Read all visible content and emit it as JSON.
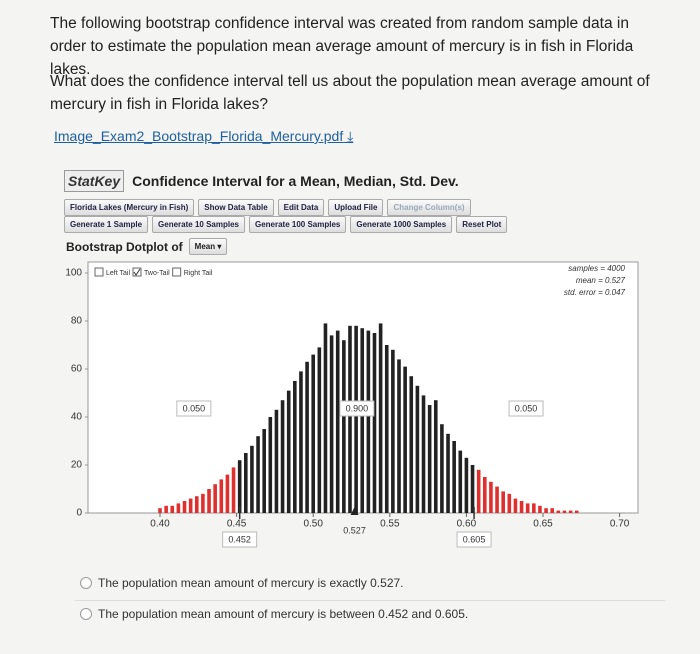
{
  "question": {
    "paragraphs": [
      "The following bootstrap confidence interval was created from random sample data in order to estimate the population mean average amount of mercury is in fish in Florida lakes.",
      "What does the confidence interval tell us about the population mean average amount of mercury in fish in Florida lakes?"
    ],
    "link": "Image_Exam2_Bootstrap_Florida_Mercury.pdf"
  },
  "statkey": {
    "logo": "StatKey",
    "title": "Confidence Interval for a Mean, Median, Std. Dev.",
    "buttons_row1": [
      "Florida Lakes (Mercury in Fish)",
      "Show Data Table",
      "Edit Data",
      "Upload File",
      "Change Column(s)"
    ],
    "buttons_row2": [
      "Generate 1 Sample",
      "Generate 10 Samples",
      "Generate 100 Samples",
      "Generate 1000 Samples",
      "Reset Plot"
    ],
    "dotplot_label": "Bootstrap Dotplot of",
    "statistic": "Mean",
    "tail_options": [
      "Left Tail",
      "Two-Tail",
      "Right Tail"
    ],
    "stats": [
      "samples = 4000",
      "mean = 0.527",
      "std. error = 0.047"
    ]
  },
  "chart_data": {
    "type": "bar",
    "x": [
      0.4,
      0.404,
      0.408,
      0.412,
      0.416,
      0.42,
      0.424,
      0.428,
      0.432,
      0.436,
      0.44,
      0.444,
      0.448,
      0.452,
      0.456,
      0.46,
      0.464,
      0.468,
      0.472,
      0.476,
      0.48,
      0.484,
      0.488,
      0.492,
      0.496,
      0.5,
      0.504,
      0.508,
      0.512,
      0.516,
      0.52,
      0.524,
      0.528,
      0.532,
      0.536,
      0.54,
      0.544,
      0.548,
      0.552,
      0.556,
      0.56,
      0.564,
      0.568,
      0.572,
      0.576,
      0.58,
      0.584,
      0.588,
      0.592,
      0.596,
      0.6,
      0.604,
      0.608,
      0.612,
      0.616,
      0.62,
      0.624,
      0.628,
      0.632,
      0.636,
      0.64,
      0.644,
      0.648,
      0.652,
      0.656,
      0.66,
      0.664,
      0.668,
      0.672
    ],
    "values": [
      2,
      3,
      3,
      4,
      5,
      6,
      7,
      8,
      10,
      12,
      14,
      16,
      19,
      22,
      25,
      28,
      32,
      35,
      40,
      43,
      47,
      51,
      55,
      59,
      63,
      66,
      69,
      79,
      74,
      76,
      72,
      78,
      78,
      77,
      76,
      75,
      79,
      70,
      68,
      64,
      61,
      57,
      53,
      49,
      45,
      47,
      37,
      33,
      30,
      26,
      23,
      20,
      18,
      15,
      13,
      11,
      9,
      8,
      6,
      5,
      4,
      4,
      3,
      2,
      2,
      1,
      1,
      1,
      1
    ],
    "color": "#222222",
    "tail_color": "#e0302e",
    "xlim": [
      0.353,
      0.712
    ],
    "ylim": [
      0,
      100
    ],
    "xticks": [
      {
        "value": 0.4,
        "label": "0.40"
      },
      0.45,
      {
        "value": 0.5,
        "label": "0.50"
      },
      0.55,
      {
        "value": 0.6,
        "label": "0.60"
      },
      0.65,
      {
        "value": 0.7,
        "label": "0.70"
      }
    ],
    "yticks": [
      0,
      20,
      40,
      60,
      80,
      100
    ],
    "ci": [
      0.452,
      0.605
    ],
    "mean": 0.527,
    "tail_proportions": [
      "0.050",
      "0.900",
      "0.050"
    ]
  },
  "answers": [
    "The population mean amount of mercury is exactly 0.527.",
    "The population mean amount of mercury is between 0.452 and 0.605."
  ]
}
